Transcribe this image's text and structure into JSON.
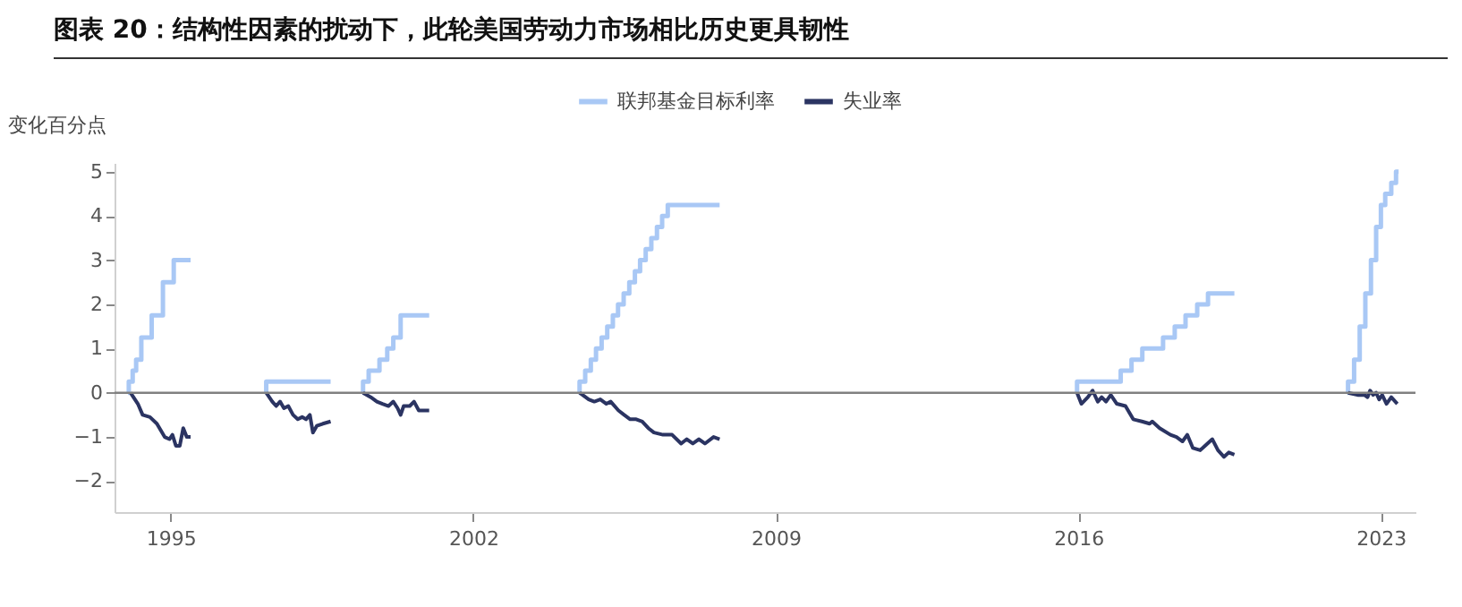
{
  "chart_data": {
    "type": "line",
    "title": "图表 20：结构性因素的扰动下，此轮美国劳动力市场相比历史更具韧性",
    "ylabel": "变化百分点",
    "legend": "top",
    "xlim": [
      1993.7,
      2023.8
    ],
    "xticks": [
      1995,
      2002,
      2009,
      2016,
      2023
    ],
    "ylim": [
      -2.7,
      5.2
    ],
    "yticks": [
      -2,
      -1,
      0,
      1,
      2,
      3,
      4,
      5
    ],
    "grid": false,
    "ref_lines": [
      {
        "axis": "y",
        "value": 0,
        "color": "#808080"
      }
    ],
    "series": [
      {
        "name": "联邦基金目标利率",
        "type": "step",
        "color": "#a9c8f5",
        "x": [
          1994.01,
          1994.03,
          1994.12,
          1994.2,
          1994.32,
          1994.56,
          1994.82,
          1995.07,
          1995.46,
          1995.5,
          1997.19,
          1997.21,
          1998.7,
          1998.8,
          1999.43,
          1999.45,
          1999.58,
          1999.83,
          2000.01,
          2000.15,
          2000.32,
          2000.98,
          2001.0,
          2004.44,
          2004.46,
          2004.59,
          2004.72,
          2004.84,
          2004.97,
          2005.1,
          2005.23,
          2005.35,
          2005.48,
          2005.61,
          2005.74,
          2005.86,
          2005.99,
          2006.12,
          2006.25,
          2006.37,
          2006.5,
          2007.7,
          2007.8,
          2015.95,
          2015.97,
          2016.98,
          2017.23,
          2017.48,
          2017.96,
          2018.23,
          2018.48,
          2018.75,
          2019.0,
          2019.61,
          2019.7,
          2022.22,
          2022.24,
          2022.38,
          2022.51,
          2022.64,
          2022.77,
          2022.89,
          2023.0,
          2023.1,
          2023.24,
          2023.35,
          2023.41
        ],
        "values": [
          0,
          0.25,
          0.5,
          0.75,
          1.25,
          1.75,
          2.5,
          3.0,
          3.0,
          null,
          0,
          0.25,
          0.25,
          null,
          0,
          0.25,
          0.5,
          0.75,
          1.0,
          1.25,
          1.75,
          1.75,
          null,
          0,
          0.25,
          0.5,
          0.75,
          1.0,
          1.25,
          1.5,
          1.75,
          2.0,
          2.25,
          2.5,
          2.75,
          3.0,
          3.25,
          3.5,
          3.75,
          4.0,
          4.25,
          4.25,
          null,
          0,
          0.25,
          0.5,
          0.75,
          1.0,
          1.25,
          1.5,
          1.75,
          2.0,
          2.25,
          2.25,
          null,
          0,
          0.25,
          0.75,
          1.5,
          2.25,
          3.0,
          3.75,
          4.25,
          4.5,
          4.75,
          5.0,
          5.0
        ]
      },
      {
        "name": "失业率",
        "type": "line",
        "color": "#2b3462",
        "x": [
          1994.07,
          1994.24,
          1994.35,
          1994.52,
          1994.68,
          1994.86,
          1994.97,
          1995.04,
          1995.12,
          1995.21,
          1995.29,
          1995.37,
          1995.46,
          1995.5,
          1997.21,
          1997.35,
          1997.44,
          1997.53,
          1997.62,
          1997.72,
          1997.83,
          1997.94,
          1998.04,
          1998.13,
          1998.22,
          1998.29,
          1998.38,
          1998.52,
          1998.7,
          1998.8,
          1999.45,
          1999.63,
          1999.77,
          1999.9,
          2000.04,
          2000.15,
          2000.25,
          2000.32,
          2000.39,
          2000.53,
          2000.63,
          2000.74,
          2000.98,
          2001.0,
          2004.46,
          2004.67,
          2004.8,
          2004.94,
          2005.08,
          2005.18,
          2005.36,
          2005.49,
          2005.63,
          2005.77,
          2005.91,
          2006.05,
          2006.18,
          2006.39,
          2006.6,
          2006.81,
          2006.94,
          2007.08,
          2007.22,
          2007.36,
          2007.56,
          2007.7,
          2007.8,
          2015.97,
          2016.07,
          2016.22,
          2016.33,
          2016.45,
          2016.54,
          2016.64,
          2016.75,
          2016.89,
          2017.09,
          2017.27,
          2017.47,
          2017.65,
          2017.71,
          2017.88,
          2018.13,
          2018.27,
          2018.41,
          2018.52,
          2018.65,
          2018.82,
          2018.93,
          2019.1,
          2019.23,
          2019.37,
          2019.48,
          2019.61,
          2019.7,
          2022.24,
          2022.48,
          2022.62,
          2022.69,
          2022.75,
          2022.82,
          2022.89,
          2022.96,
          2023.03,
          2023.13,
          2023.24,
          2023.38
        ],
        "values": [
          0,
          -0.25,
          -0.5,
          -0.55,
          -0.7,
          -1.0,
          -1.05,
          -0.95,
          -1.2,
          -1.2,
          -0.8,
          -1.0,
          -1.0,
          null,
          0,
          -0.2,
          -0.3,
          -0.2,
          -0.35,
          -0.3,
          -0.5,
          -0.6,
          -0.55,
          -0.6,
          -0.5,
          -0.9,
          -0.75,
          -0.7,
          -0.65,
          null,
          0,
          -0.1,
          -0.2,
          -0.25,
          -0.3,
          -0.2,
          -0.35,
          -0.5,
          -0.3,
          -0.3,
          -0.2,
          -0.4,
          -0.4,
          null,
          0,
          -0.15,
          -0.2,
          -0.15,
          -0.25,
          -0.2,
          -0.4,
          -0.5,
          -0.6,
          -0.6,
          -0.65,
          -0.8,
          -0.9,
          -0.95,
          -0.95,
          -1.15,
          -1.05,
          -1.15,
          -1.05,
          -1.15,
          -1.0,
          -1.05,
          null,
          0,
          -0.25,
          -0.1,
          0.05,
          -0.2,
          -0.1,
          -0.2,
          -0.05,
          -0.25,
          -0.3,
          -0.6,
          -0.65,
          -0.7,
          -0.65,
          -0.8,
          -0.95,
          -1.0,
          -1.1,
          -0.95,
          -1.25,
          -1.3,
          -1.2,
          -1.05,
          -1.3,
          -1.45,
          -1.35,
          -1.4,
          null,
          0,
          -0.05,
          -0.05,
          -0.1,
          0.05,
          -0.05,
          0,
          -0.15,
          -0.05,
          -0.25,
          -0.1,
          -0.25
        ]
      }
    ]
  }
}
